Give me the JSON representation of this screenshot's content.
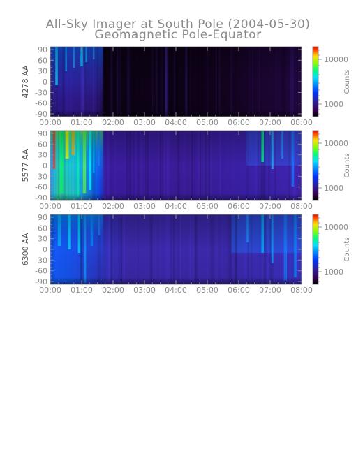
{
  "title": "All-Sky Imager at South Pole (2004-05-30)",
  "subtitle": "Geomagnetic Pole-Equator",
  "chart_data": [
    {
      "type": "heatmap",
      "ylabel": "4278 AA",
      "x_ticks": [
        "00:00",
        "01:00",
        "02:00",
        "03:00",
        "04:00",
        "05:00",
        "06:00",
        "07:00",
        "08:00"
      ],
      "y_ticks": [
        "90",
        "60",
        "30",
        "0",
        "-30",
        "-60",
        "-90"
      ],
      "xlim": [
        "00:00",
        "08:00"
      ],
      "ylim": [
        -90,
        90
      ],
      "colorbar": {
        "label": "Counts",
        "ticks": [
          "10000",
          "1000"
        ],
        "scale": "log"
      }
    },
    {
      "type": "heatmap",
      "ylabel": "5577 AA",
      "x_ticks": [
        "00:00",
        "01:00",
        "02:00",
        "03:00",
        "04:00",
        "05:00",
        "06:00",
        "07:00",
        "08:00"
      ],
      "y_ticks": [
        "90",
        "60",
        "30",
        "0",
        "-30",
        "-60",
        "-90"
      ],
      "xlim": [
        "00:00",
        "08:00"
      ],
      "ylim": [
        -90,
        90
      ],
      "colorbar": {
        "label": "Counts",
        "ticks": [
          "10000",
          "1000"
        ],
        "scale": "log"
      }
    },
    {
      "type": "heatmap",
      "ylabel": "6300 AA",
      "x_ticks": [
        "00:00",
        "01:00",
        "02:00",
        "03:00",
        "04:00",
        "05:00",
        "06:00",
        "07:00",
        "08:00"
      ],
      "y_ticks": [
        "90",
        "60",
        "30",
        "0",
        "-30",
        "-60",
        "-90"
      ],
      "xlim": [
        "00:00",
        "08:00"
      ],
      "ylim": [
        -90,
        90
      ],
      "colorbar": {
        "label": "Counts",
        "ticks": [
          "10000",
          "1000"
        ],
        "scale": "log"
      }
    }
  ]
}
